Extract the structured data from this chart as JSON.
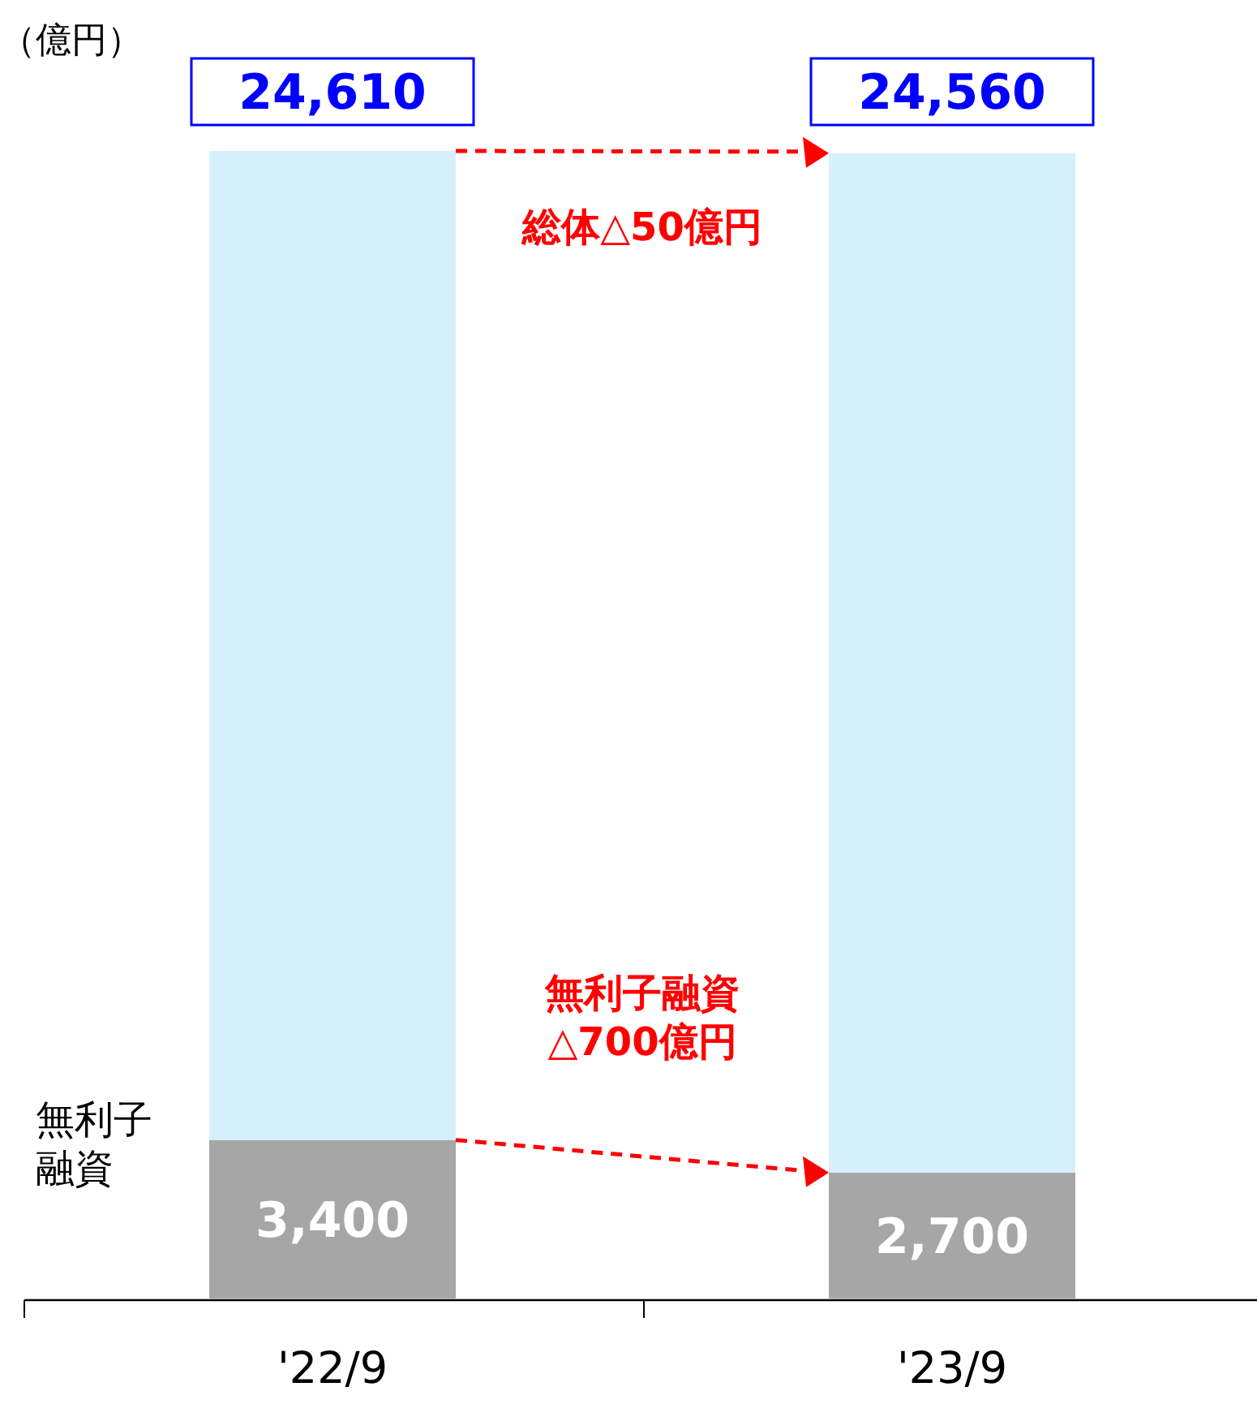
{
  "chart_data": {
    "type": "bar",
    "stacked": true,
    "categories": [
      "'22/9",
      "'23/9"
    ],
    "series": [
      {
        "name": "無利子融資",
        "color": "#a6a6a6",
        "values": [
          3400,
          2700
        ],
        "value_labels": [
          "3,400",
          "2,700"
        ]
      },
      {
        "color": "#d5f0fb",
        "values": [
          21210,
          21860
        ]
      }
    ],
    "totals": [
      "24,610",
      "24,560"
    ],
    "annotations": [
      "（億円）",
      "総体△50億円",
      "無利子融資\n△700億円"
    ]
  }
}
